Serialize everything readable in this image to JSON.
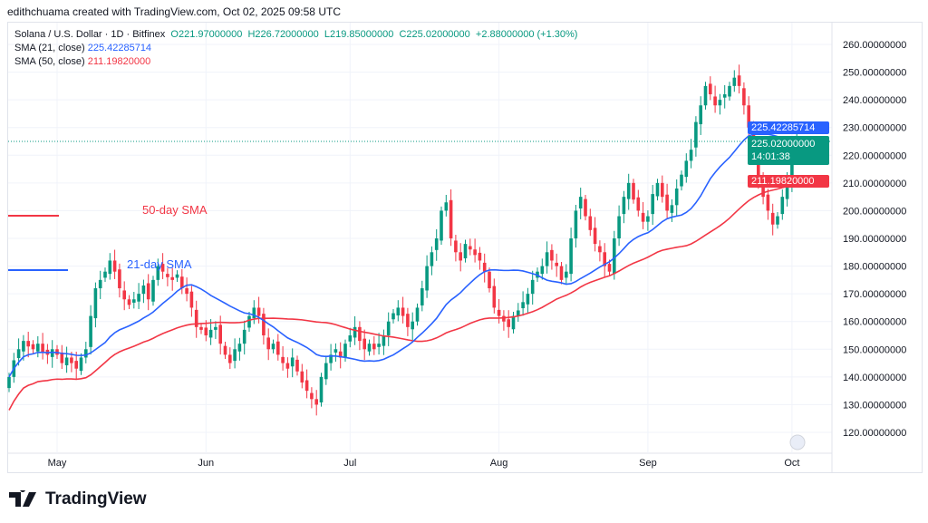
{
  "credit": "edithchuama created with TradingView.com, Oct 02, 2025 09:58 UTC",
  "legend": {
    "symbol": "Solana / U.S. Dollar · 1D · Bitfinex",
    "open": "O221.97000000",
    "high": "H226.72000000",
    "low": "L219.85000000",
    "close": "C225.02000000",
    "change": "+2.88000000 (+1.30%)",
    "sma21_label": "SMA (21, close)",
    "sma21_value": "225.42285714",
    "sma50_label": "SMA (50, close)",
    "sma50_value": "211.19820000"
  },
  "tags": {
    "sma21": "225.42285714",
    "last": "225.02000000",
    "countdown": "14:01:38",
    "sma50": "211.19820000"
  },
  "annotations": {
    "sma50": "50-day SMA",
    "sma21": "21-day SMA"
  },
  "footer": {
    "brand": "TradingView"
  },
  "colors": {
    "up": "#089981",
    "down": "#f23645",
    "sma21": "#2962ff",
    "sma50": "#f23645"
  },
  "chart_data": {
    "type": "candlestick",
    "title": "Solana / U.S. Dollar · 1D · Bitfinex",
    "start_date": "2025-04-21",
    "ylim": [
      113,
      263
    ],
    "yticks": [
      "260.00000000",
      "250.00000000",
      "240.00000000",
      "230.00000000",
      "220.00000000",
      "210.00000000",
      "200.00000000",
      "190.00000000",
      "180.00000000",
      "170.00000000",
      "160.00000000",
      "150.00000000",
      "140.00000000",
      "130.00000000",
      "120.00000000"
    ],
    "yticks_values": [
      260,
      250,
      240,
      230,
      220,
      210,
      200,
      190,
      180,
      170,
      160,
      150,
      140,
      130,
      120
    ],
    "xticks": [
      {
        "label": "May",
        "day": 10
      },
      {
        "label": "Jun",
        "day": 41
      },
      {
        "label": "Jul",
        "day": 71
      },
      {
        "label": "Aug",
        "day": 102
      },
      {
        "label": "Sep",
        "day": 133
      },
      {
        "label": "Oct",
        "day": 163
      }
    ],
    "close": [
      140,
      146,
      150,
      153,
      151,
      150,
      152,
      149,
      148,
      150,
      148,
      145,
      147,
      145,
      143,
      147,
      150,
      162,
      172,
      175,
      178,
      182,
      178,
      172,
      168,
      166,
      168,
      170,
      173,
      168,
      175,
      180,
      178,
      176,
      175,
      177,
      172,
      170,
      165,
      158,
      157,
      155,
      157,
      158,
      152,
      148,
      145,
      150,
      152,
      157,
      162,
      165,
      162,
      155,
      150,
      152,
      148,
      145,
      143,
      147,
      142,
      138,
      135,
      132,
      130,
      140,
      145,
      148,
      150,
      147,
      152,
      155,
      158,
      153,
      150,
      152,
      150,
      152,
      155,
      160,
      163,
      165,
      162,
      158,
      160,
      165,
      172,
      180,
      185,
      190,
      200,
      203,
      190,
      185,
      182,
      188,
      186,
      184,
      182,
      178,
      172,
      165,
      162,
      160,
      158,
      162,
      164,
      167,
      170,
      175,
      178,
      180,
      185,
      182,
      180,
      175,
      178,
      190,
      200,
      205,
      198,
      193,
      188,
      185,
      180,
      178,
      190,
      198,
      205,
      210,
      204,
      200,
      196,
      198,
      206,
      210,
      205,
      200,
      202,
      208,
      213,
      218,
      222,
      232,
      238,
      245,
      242,
      238,
      240,
      242,
      245,
      248,
      245,
      238,
      230,
      218,
      210,
      205,
      200,
      195,
      198,
      205,
      210,
      220,
      225
    ]
  }
}
